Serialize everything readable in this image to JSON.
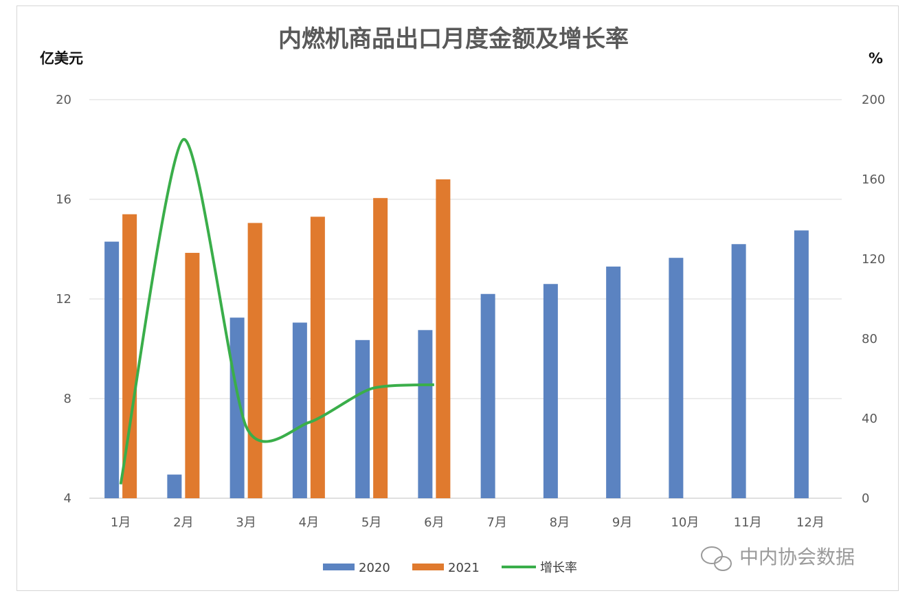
{
  "chart_data": {
    "type": "bar",
    "title": "内燃机商品出口月度金额及增长率",
    "ylabel": "亿美元",
    "y2label": "%",
    "categories": [
      "1月",
      "2月",
      "3月",
      "4月",
      "5月",
      "6月",
      "7月",
      "8月",
      "9月",
      "10月",
      "11月",
      "12月"
    ],
    "ylim": [
      4,
      20
    ],
    "yticks": [
      4,
      8,
      12,
      16,
      20
    ],
    "y2lim": [
      0,
      200
    ],
    "y2ticks": [
      0,
      40,
      80,
      120,
      160,
      200
    ],
    "series": [
      {
        "name": "2020",
        "type": "bar",
        "color": "#5b83c1",
        "values": [
          14.3,
          4.95,
          11.25,
          11.05,
          10.35,
          10.75,
          12.2,
          12.6,
          13.3,
          13.65,
          14.2,
          14.75
        ]
      },
      {
        "name": "2021",
        "type": "bar",
        "color": "#e07a2e",
        "values": [
          15.4,
          13.85,
          15.05,
          15.3,
          16.05,
          16.8,
          null,
          null,
          null,
          null,
          null,
          null
        ]
      },
      {
        "name": "增长率",
        "type": "line",
        "axis": "y2",
        "color": "#3aae4a",
        "values": [
          7,
          180,
          36,
          38,
          55,
          57,
          null,
          null,
          null,
          null,
          null,
          null
        ]
      }
    ],
    "grid": true,
    "legend_position": "bottom"
  },
  "watermark": {
    "icon": "wechat-icon",
    "text": "中内协会数据"
  }
}
